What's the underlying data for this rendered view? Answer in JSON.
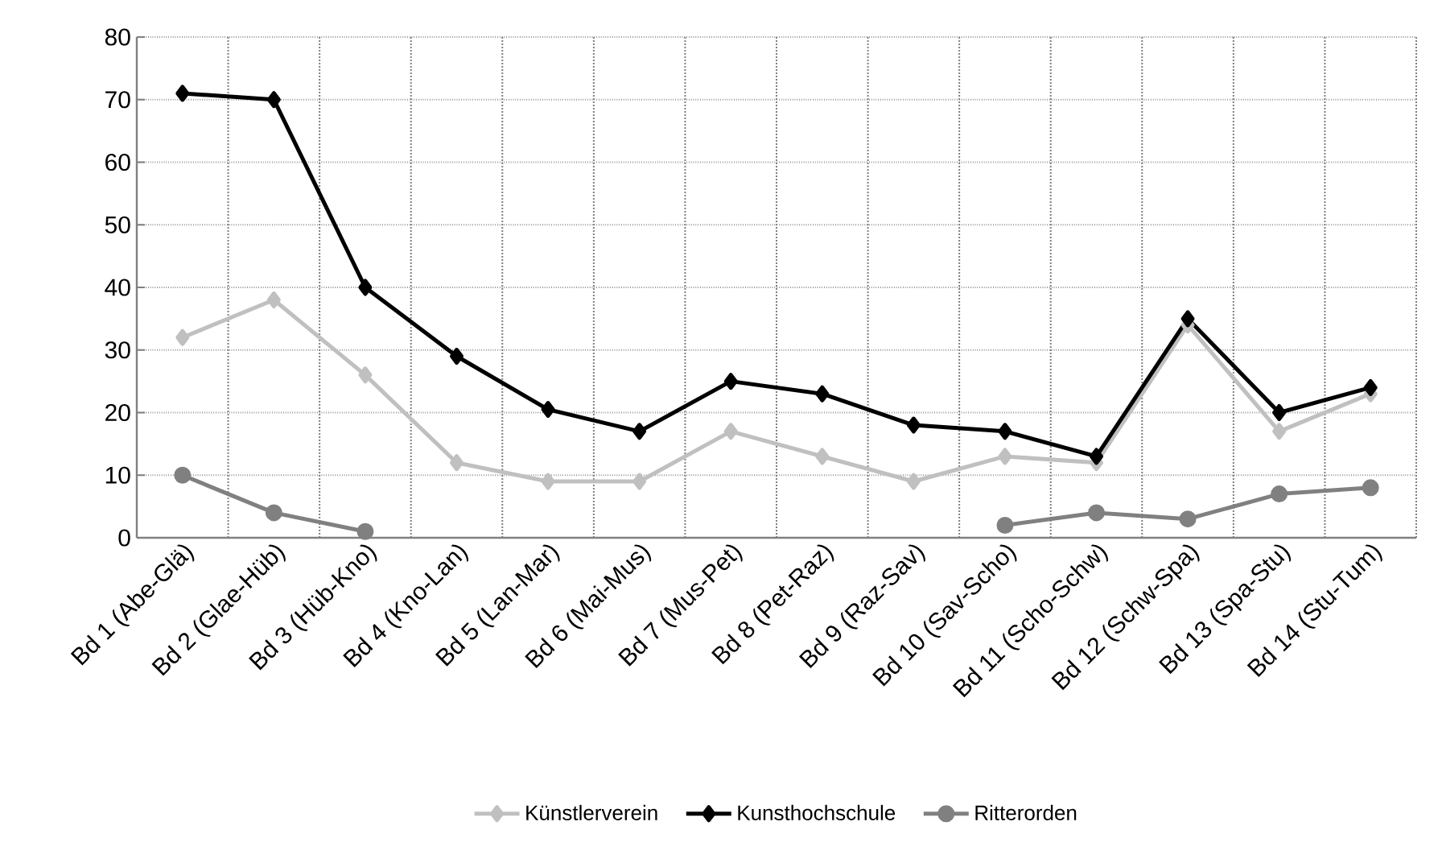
{
  "chart_data": {
    "type": "line",
    "categories": [
      "Bd 1 (Abe-Glä)",
      "Bd 2 (Glae-Hüb)",
      "Bd 3 (Hüb-Kno)",
      "Bd 4 (Kno-Lan)",
      "Bd 5 (Lan-Mar)",
      "Bd 6 (Mai-Mus)",
      "Bd 7 (Mus-Pet)",
      "Bd 8 (Pet-Raz)",
      "Bd 9 (Raz-Sav)",
      "Bd 10 (Sav-Scho)",
      "Bd 11 (Scho-Schw)",
      "Bd 12 (Schw-Spa)",
      "Bd 13 (Spa-Stu)",
      "Bd 14 (Stu-Tum)"
    ],
    "series": [
      {
        "name": "Künstlerverein",
        "color": "#c0c0c0",
        "marker": "diamond",
        "values": [
          32,
          38,
          26,
          12,
          9,
          9,
          17,
          13,
          9,
          13,
          12,
          34,
          17,
          23
        ]
      },
      {
        "name": "Kunsthochschule",
        "color": "#000000",
        "marker": "diamond",
        "values": [
          71,
          70,
          40,
          29,
          20.5,
          17,
          25,
          23,
          18,
          17,
          13,
          35,
          20,
          24
        ]
      },
      {
        "name": "Ritterorden",
        "color": "#808080",
        "marker": "circle",
        "values": [
          10,
          4,
          1,
          null,
          null,
          null,
          null,
          null,
          null,
          2,
          4,
          3,
          7,
          8
        ]
      }
    ],
    "ylim": [
      0,
      80
    ],
    "yticks": [
      0,
      10,
      20,
      30,
      40,
      50,
      60,
      70,
      80
    ],
    "grid": true,
    "legend": "bottom",
    "line_style": "solid"
  }
}
